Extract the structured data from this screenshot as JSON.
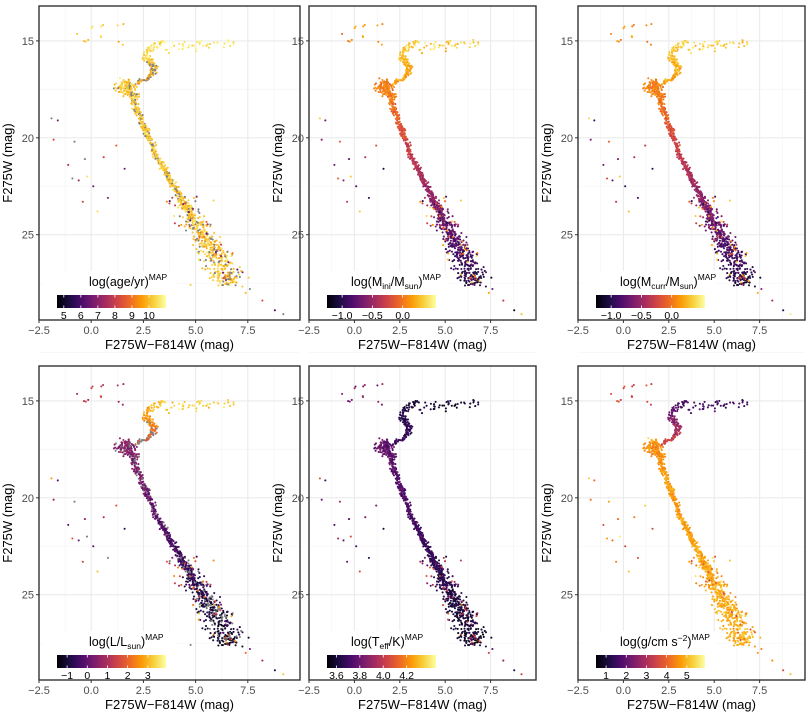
{
  "figure": {
    "xlabel": "F275W−F814W (mag)",
    "ylabel": "F275W (mag)"
  },
  "colormap": {
    "name": "inferno",
    "stops": [
      "#000004",
      "#1b0c41",
      "#4a0c6b",
      "#781c6d",
      "#a52c60",
      "#cf4446",
      "#ed6925",
      "#fb9b06",
      "#f7d13d",
      "#fcffa4"
    ]
  },
  "chart_data": [
    {
      "type": "scatter",
      "name": "age",
      "title": "log(age/yr)MAP",
      "legend_label": {
        "main": "log(age/yr)",
        "sub": "",
        "tail": "",
        "sup": "MAP"
      },
      "xlabel": "F275W−F814W (mag)",
      "ylabel": "F275W (mag)",
      "xlim": [
        -2.5,
        10
      ],
      "ylim": [
        29.4,
        13.2
      ],
      "y_reversed": true,
      "xticks": [
        -2.5,
        0,
        2.5,
        5,
        7.5
      ],
      "xtick_labels": [
        "−2.5",
        "0.0",
        "2.5",
        "5.0",
        "7.5"
      ],
      "yticks": [
        15,
        20,
        25
      ],
      "ytick_labels": [
        "15",
        "20",
        "25"
      ],
      "legend": {
        "position": "bottom-left",
        "range": [
          4.6,
          11.0
        ],
        "ticks": [
          5,
          6,
          7,
          8,
          9,
          10
        ],
        "tick_labels": [
          "5",
          "6",
          "7",
          "8",
          "9",
          "10"
        ]
      },
      "points_description": "Color-magnitude diagram, dense sequence from (1.9,17.4) to (6.8,27.6), colored by log age",
      "color_model": {
        "ms": [
          10.2,
          10.2
        ],
        "gb": [
          9.6,
          10.6
        ],
        "hb": [
          9.8,
          10.4
        ],
        "scatter": [
          6.0,
          10.6
        ],
        "gray_frac": 0.28
      }
    },
    {
      "type": "scatter",
      "name": "mini",
      "title": "log(Mini/Msun)MAP",
      "legend_label": {
        "main": "log(M",
        "sub": "ini",
        "tail": "/M",
        "sub2": "sun",
        "end": ")",
        "sup": "MAP"
      },
      "xlabel": "F275W−F814W (mag)",
      "ylabel": "F275W (mag)",
      "xlim": [
        -2.5,
        10
      ],
      "ylim": [
        29.4,
        13.2
      ],
      "y_reversed": true,
      "xticks": [
        -2.5,
        0,
        2.5,
        5,
        7.5
      ],
      "xtick_labels": [
        "−2.5",
        "0.0",
        "2.5",
        "5.0",
        "7.5"
      ],
      "yticks": [
        15,
        20,
        25
      ],
      "ytick_labels": [
        "15",
        "20",
        "25"
      ],
      "legend": {
        "position": "bottom-left",
        "range": [
          -1.25,
          0.55
        ],
        "ticks": [
          -1.0,
          -0.5,
          0.0
        ],
        "tick_labels": [
          "−1.0",
          "−0.5",
          "0.0"
        ]
      },
      "color_model": {
        "ms": [
          0.05,
          -1.05
        ],
        "gb": [
          0.15,
          0.35
        ],
        "hb": [
          -0.05,
          0.2
        ],
        "scatter": [
          -1.1,
          0.4
        ],
        "gray_frac": 0
      }
    },
    {
      "type": "scatter",
      "name": "mcurr",
      "title": "log(Mcurr/Msun)MAP",
      "legend_label": {
        "main": "log(M",
        "sub": "curr",
        "tail": "/M",
        "sub2": "sun",
        "end": ")",
        "sup": "MAP"
      },
      "xlabel": "F275W−F814W (mag)",
      "ylabel": "F275W (mag)",
      "xlim": [
        -2.5,
        10
      ],
      "ylim": [
        29.4,
        13.2
      ],
      "y_reversed": true,
      "xticks": [
        -2.5,
        0,
        2.5,
        5,
        7.5
      ],
      "xtick_labels": [
        "−2.5",
        "0.0",
        "2.5",
        "5.0",
        "7.5"
      ],
      "yticks": [
        15,
        20,
        25
      ],
      "ytick_labels": [
        "15",
        "20",
        "25"
      ],
      "legend": {
        "position": "bottom-left",
        "range": [
          -1.25,
          0.55
        ],
        "ticks": [
          -1.0,
          -0.5,
          0.0
        ],
        "tick_labels": [
          "−1.0",
          "−0.5",
          "0.0"
        ]
      },
      "color_model": {
        "ms": [
          0.05,
          -1.05
        ],
        "gb": [
          0.15,
          0.35
        ],
        "hb": [
          -0.05,
          0.2
        ],
        "scatter": [
          -1.1,
          0.4
        ],
        "gray_frac": 0
      }
    },
    {
      "type": "scatter",
      "name": "lum",
      "title": "log(L/Lsun)MAP",
      "legend_label": {
        "main": "log(L/L",
        "sub": "sun",
        "tail": ")",
        "sup": "MAP"
      },
      "xlabel": "F275W−F814W (mag)",
      "ylabel": "F275W (mag)",
      "xlim": [
        -2.5,
        10
      ],
      "ylim": [
        29.4,
        13.2
      ],
      "y_reversed": true,
      "xticks": [
        -2.5,
        0,
        2.5,
        5,
        7.5
      ],
      "xtick_labels": [
        "−2.5",
        "0.0",
        "2.5",
        "5.0",
        "7.5"
      ],
      "yticks": [
        15,
        20,
        25
      ],
      "ytick_labels": [
        "15",
        "20",
        "25"
      ],
      "legend": {
        "position": "bottom-left",
        "range": [
          -1.5,
          3.9
        ],
        "ticks": [
          -1,
          0,
          1,
          2,
          3
        ],
        "tick_labels": [
          "−1",
          "0",
          "1",
          "2",
          "3"
        ]
      },
      "color_model": {
        "ms": [
          0.5,
          -1.2
        ],
        "gb": [
          1.6,
          3.3
        ],
        "hb": [
          0.8,
          1.5
        ],
        "scatter": [
          -1.0,
          3.0
        ],
        "gray_frac": 0.22
      }
    },
    {
      "type": "scatter",
      "name": "teff",
      "title": "log(Teff/K)MAP",
      "legend_label": {
        "main": "log(T",
        "sub": "eff",
        "tail": "/K)",
        "sup": "MAP"
      },
      "xlabel": "F275W−F814W (mag)",
      "ylabel": "F275W (mag)",
      "xlim": [
        -2.5,
        10
      ],
      "ylim": [
        29.4,
        13.2
      ],
      "y_reversed": true,
      "xticks": [
        -2.5,
        0,
        2.5,
        5,
        7.5
      ],
      "xtick_labels": [
        "−2.5",
        "0.0",
        "2.5",
        "5.0",
        "7.5"
      ],
      "yticks": [
        15,
        20,
        25
      ],
      "ytick_labels": [
        "15",
        "20",
        "25"
      ],
      "legend": {
        "position": "bottom-left",
        "range": [
          3.52,
          4.45
        ],
        "ticks": [
          3.6,
          3.8,
          4.0,
          4.2
        ],
        "tick_labels": [
          "3.6",
          "3.8",
          "4.0",
          "4.2"
        ]
      },
      "color_model": {
        "ms": [
          3.78,
          3.58
        ],
        "gb": [
          3.72,
          3.6
        ],
        "hb": [
          3.9,
          3.85
        ],
        "scatter": [
          3.6,
          4.1
        ],
        "gray_frac": 0
      }
    },
    {
      "type": "scatter",
      "name": "logg",
      "title": "log(g/cm s−2)MAP",
      "legend_label": {
        "main": "log(g/cm s",
        "sup1": "−2",
        "tail": ")",
        "sup": "MAP"
      },
      "xlabel": "F275W−F814W (mag)",
      "ylabel": "F275W (mag)",
      "xlim": [
        -2.5,
        10
      ],
      "ylim": [
        29.4,
        13.2
      ],
      "y_reversed": true,
      "xticks": [
        -2.5,
        0,
        2.5,
        5,
        7.5
      ],
      "xtick_labels": [
        "−2.5",
        "0.0",
        "2.5",
        "5.0",
        "7.5"
      ],
      "yticks": [
        15,
        20,
        25
      ],
      "ytick_labels": [
        "15",
        "20",
        "25"
      ],
      "legend": {
        "position": "bottom-left",
        "range": [
          0.5,
          5.9
        ],
        "ticks": [
          1,
          2,
          3,
          4,
          5
        ],
        "tick_labels": [
          "1",
          "2",
          "3",
          "4",
          "5"
        ]
      },
      "color_model": {
        "ms": [
          4.6,
          5.0
        ],
        "gb": [
          3.6,
          1.6
        ],
        "hb": [
          3.5,
          3.6
        ],
        "scatter": [
          3.5,
          5.5
        ],
        "gray_frac": 0
      }
    }
  ]
}
